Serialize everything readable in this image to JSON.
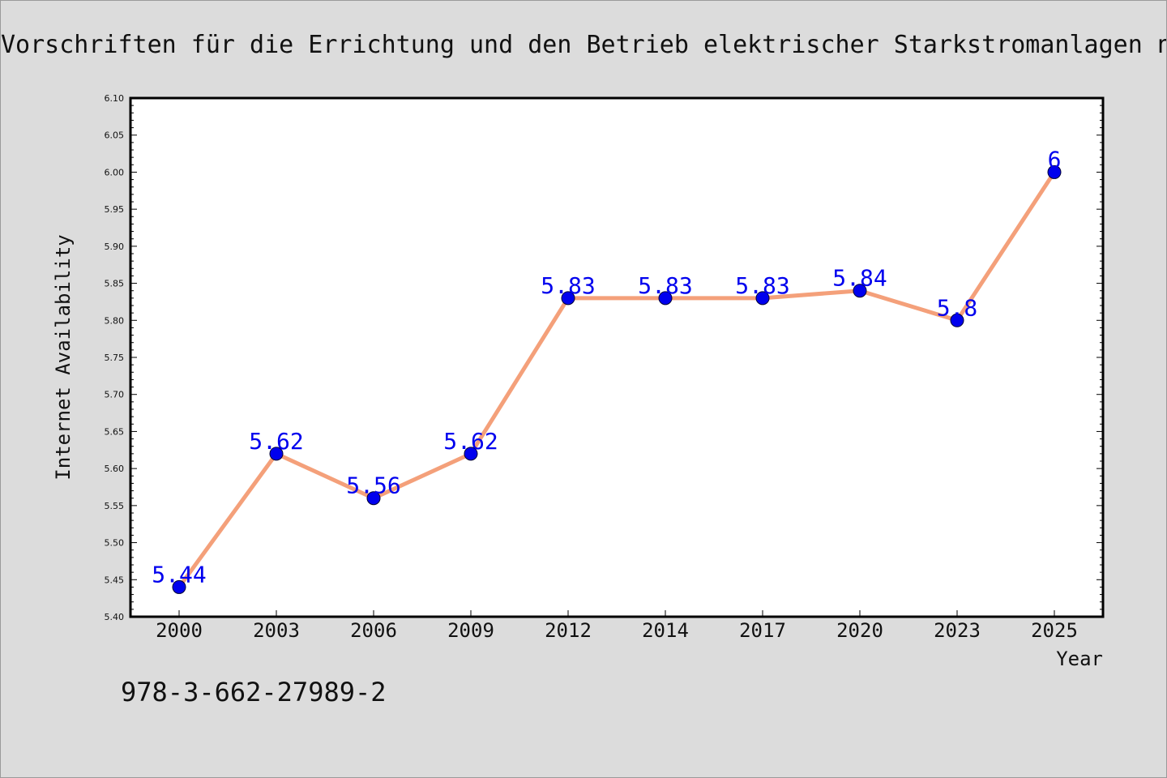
{
  "chart_data": {
    "type": "line",
    "title": "Vorschriften für die Errichtung und den Betrieb elektrischer Starkstromanlagen n",
    "xlabel": "Year",
    "ylabel": "Internet Availability",
    "categories": [
      "2000",
      "2003",
      "2006",
      "2009",
      "2012",
      "2014",
      "2017",
      "2020",
      "2023",
      "2025"
    ],
    "series": [
      {
        "values": [
          5.44,
          5.62,
          5.56,
          5.62,
          5.83,
          5.83,
          5.83,
          5.84,
          5.8,
          6
        ],
        "data_labels": [
          "5.44",
          "5.62",
          "5.56",
          "5.62",
          "5.83",
          "5.83",
          "5.83",
          "5.84",
          "5.8",
          "6"
        ],
        "line_color": "#f4a07a",
        "marker_color": "#0000ee"
      }
    ],
    "ylim": [
      5.4,
      6.1
    ],
    "yticks": [
      "5.40",
      "5.45",
      "5.50",
      "5.55",
      "5.60",
      "5.65",
      "5.70",
      "5.75",
      "5.80",
      "5.85",
      "5.90",
      "5.95",
      "6.00",
      "6.05",
      "6.10"
    ],
    "grid": false,
    "legend": "none"
  },
  "footer": {
    "isbn": "978-3-662-27989-2"
  },
  "colors": {
    "background": "#dcdcdc",
    "plot_area": "#ffffff",
    "label_color": "#0000ee"
  }
}
